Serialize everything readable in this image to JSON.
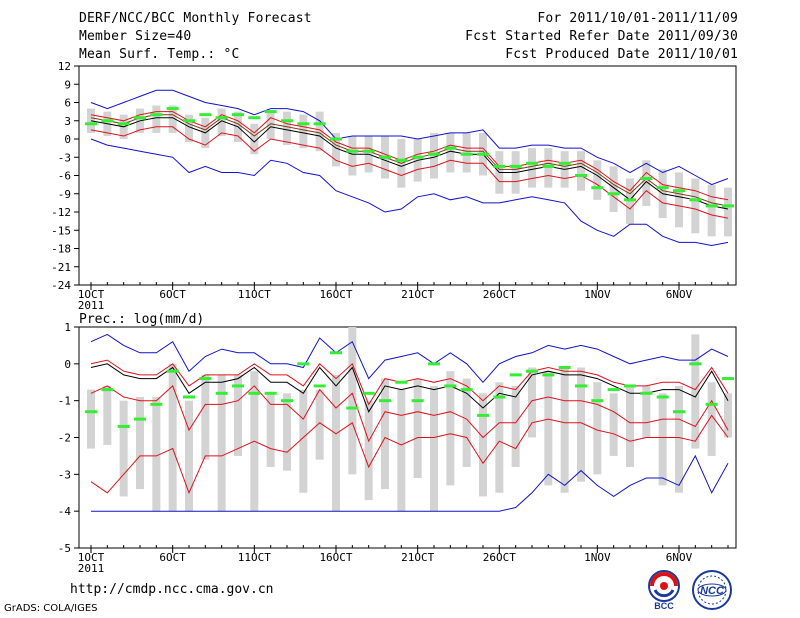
{
  "header": {
    "title": "DERF/NCC/BCC Monthly Forecast",
    "member_size": "Member Size=40",
    "variable": "Mean Surf. Temp.: °C",
    "period": "For 2011/10/01-2011/11/09",
    "fcst_started": "Fcst Started Refer Date 2011/09/30",
    "fcst_produced": "Fcst Produced Date 2011/10/01"
  },
  "footer": {
    "url": "http://cmdp.ncc.cma.gov.cn",
    "grads": "GrADS: COLA/IGES",
    "logo1_text": "BCC",
    "logo2_text": "NCC"
  },
  "colors": {
    "box": "#d3d3d3",
    "mean": "#000000",
    "std_band": "#e0111b",
    "envelope": "#1212cc",
    "observed_marker": "#33ee33",
    "secondary": "#7a3b10"
  },
  "chart_data": [
    {
      "type": "box-ensemble",
      "title": "Mean Surf. Temp.: °C",
      "ylabel": "°C",
      "ylim": [
        -24,
        12
      ],
      "yticks": [
        12,
        9,
        6,
        3,
        0,
        -3,
        -6,
        -9,
        -12,
        -15,
        -18,
        -21,
        -24
      ],
      "xlabels": [
        "1OCT",
        "6OCT",
        "11OCT",
        "16OCT",
        "21OCT",
        "26OCT",
        "1NOV",
        "6NOV"
      ],
      "xlabel_positions": [
        1,
        6,
        11,
        16,
        21,
        26,
        32,
        37
      ],
      "year_label": "2011",
      "days": 40,
      "mean": [
        3.0,
        2.5,
        2.0,
        3.0,
        3.5,
        3.5,
        2.0,
        1.0,
        3.0,
        2.0,
        -0.5,
        2.0,
        1.5,
        1.0,
        0.5,
        -1.5,
        -2.5,
        -2.5,
        -3.5,
        -4.5,
        -3.5,
        -3.0,
        -2.0,
        -2.5,
        -2.5,
        -5.5,
        -5.5,
        -5.0,
        -4.5,
        -5.0,
        -4.5,
        -6.0,
        -8.0,
        -10.0,
        -7.0,
        -9.0,
        -9.5,
        -10.0,
        -11.0,
        -11.5
      ],
      "std_upper": [
        4.0,
        3.5,
        3.0,
        4.0,
        4.5,
        4.5,
        3.0,
        2.0,
        4.0,
        3.0,
        1.0,
        3.5,
        2.5,
        2.0,
        1.5,
        -0.5,
        -1.5,
        -1.5,
        -2.5,
        -3.5,
        -2.5,
        -2.0,
        -1.0,
        -1.5,
        -1.5,
        -4.5,
        -4.5,
        -4.0,
        -3.5,
        -4.0,
        -3.5,
        -5.0,
        -7.0,
        -8.5,
        -5.5,
        -7.5,
        -8.0,
        -8.5,
        -9.5,
        -10.0
      ],
      "std_lower": [
        1.5,
        1.0,
        0.5,
        1.5,
        2.0,
        2.0,
        0.0,
        -1.0,
        1.0,
        0.5,
        -2.0,
        0.0,
        -0.5,
        -1.0,
        -1.5,
        -3.5,
        -4.5,
        -4.0,
        -5.0,
        -6.0,
        -5.0,
        -4.5,
        -3.5,
        -4.0,
        -4.0,
        -7.0,
        -7.0,
        -6.5,
        -6.0,
        -6.5,
        -6.0,
        -7.5,
        -9.5,
        -11.5,
        -8.5,
        -10.5,
        -11.0,
        -11.5,
        -12.5,
        -13.0
      ],
      "env_upper": [
        6.0,
        5.0,
        6.0,
        7.0,
        8.0,
        8.0,
        7.0,
        6.0,
        5.5,
        5.0,
        4.0,
        5.0,
        5.0,
        4.5,
        3.0,
        0.0,
        0.5,
        0.5,
        0.5,
        0.5,
        0.0,
        0.5,
        1.0,
        1.0,
        1.5,
        -1.5,
        -1.5,
        -1.0,
        -1.0,
        -1.5,
        -1.5,
        -3.0,
        -4.0,
        -5.5,
        -4.0,
        -5.5,
        -4.5,
        -6.0,
        -7.5,
        -6.5
      ],
      "env_lower": [
        0.0,
        -1.0,
        -1.5,
        -2.0,
        -2.5,
        -3.0,
        -5.5,
        -4.5,
        -5.5,
        -5.5,
        -6.0,
        -3.5,
        -4.0,
        -5.5,
        -6.0,
        -8.5,
        -9.5,
        -10.5,
        -12.0,
        -11.5,
        -9.5,
        -9.0,
        -10.0,
        -9.5,
        -10.5,
        -10.5,
        -10.0,
        -9.5,
        -10.0,
        -10.5,
        -13.5,
        -15.0,
        -16.0,
        -14.0,
        -14.0,
        -16.0,
        -17.0,
        -17.0,
        -17.5,
        -17.0
      ],
      "secondary_line": [
        3.5,
        3.0,
        2.5,
        3.5,
        4.0,
        4.0,
        2.5,
        1.5,
        3.5,
        2.5,
        0.5,
        2.5,
        2.0,
        1.5,
        1.0,
        -1.0,
        -2.0,
        -2.0,
        -3.0,
        -4.0,
        -3.0,
        -2.5,
        -1.5,
        -2.0,
        -2.0,
        -5.0,
        -5.0,
        -4.5,
        -4.0,
        -4.5,
        -4.0,
        -5.5,
        -7.5,
        -9.0,
        -6.5,
        -8.5,
        -9.0,
        -9.5,
        -10.5,
        -11.0
      ],
      "box_top": [
        5.0,
        4.5,
        4.0,
        5.0,
        5.5,
        5.5,
        4.0,
        3.5,
        5.0,
        4.5,
        2.5,
        4.5,
        4.5,
        4.0,
        4.5,
        1.0,
        0.5,
        0.5,
        0.5,
        0.0,
        0.0,
        1.0,
        1.0,
        1.0,
        1.0,
        -2.0,
        -2.0,
        -1.5,
        -1.5,
        -2.0,
        -2.0,
        -3.5,
        -4.5,
        -6.5,
        -3.5,
        -5.0,
        -5.5,
        -6.5,
        -7.5,
        -8.0
      ],
      "box_bottom": [
        1.0,
        0.5,
        0.0,
        1.0,
        1.0,
        1.0,
        -0.5,
        -1.5,
        0.5,
        -0.5,
        -2.5,
        0.0,
        -1.0,
        -1.5,
        -2.0,
        -4.5,
        -6.0,
        -5.5,
        -6.5,
        -8.0,
        -7.0,
        -6.5,
        -5.5,
        -5.5,
        -6.0,
        -9.0,
        -9.0,
        -8.0,
        -8.0,
        -8.0,
        -8.5,
        -10.0,
        -12.0,
        -14.0,
        -11.0,
        -13.0,
        -14.5,
        -15.5,
        -16.0,
        -16.0
      ],
      "observed": [
        2.5,
        3.0,
        2.5,
        3.5,
        4.0,
        5.0,
        3.0,
        4.0,
        3.5,
        4.0,
        3.5,
        4.5,
        3.0,
        2.5,
        2.5,
        0.0,
        -2.0,
        -2.0,
        -3.0,
        -3.5,
        -3.0,
        -2.5,
        -1.5,
        -2.5,
        -2.5,
        -4.5,
        -4.5,
        -4.0,
        -4.5,
        -4.0,
        -6.0,
        -8.0,
        -9.0,
        -10.0,
        -6.5,
        -8.0,
        -8.5,
        -10.0,
        -11.0,
        -11.0
      ]
    },
    {
      "type": "box-ensemble",
      "title": "Prec.: log(mm/d)",
      "ylabel": "log(mm/d)",
      "ylim": [
        -5,
        1
      ],
      "yticks": [
        1,
        0,
        -1,
        -2,
        -3,
        -4,
        -5
      ],
      "xlabels": [
        "1OCT",
        "6OCT",
        "11OCT",
        "16OCT",
        "21OCT",
        "26OCT",
        "1NOV",
        "6NOV"
      ],
      "xlabel_positions": [
        1,
        6,
        11,
        16,
        21,
        26,
        32,
        37
      ],
      "year_label": "2011",
      "days": 40,
      "mean": [
        -0.1,
        0.0,
        -0.3,
        -0.4,
        -0.4,
        -0.1,
        -0.8,
        -0.5,
        -0.5,
        -0.4,
        -0.1,
        -0.5,
        -0.5,
        -0.8,
        -0.1,
        -0.6,
        -0.1,
        -1.3,
        -0.6,
        -0.7,
        -0.6,
        -0.7,
        -0.6,
        -0.8,
        -1.2,
        -0.8,
        -0.9,
        -0.3,
        -0.2,
        -0.3,
        -0.3,
        -0.4,
        -0.6,
        -0.8,
        -0.8,
        -0.7,
        -0.7,
        -0.9,
        -0.2,
        -1.0
      ],
      "std_upper": [
        0.0,
        0.1,
        -0.2,
        -0.3,
        -0.3,
        0.0,
        -0.6,
        -0.3,
        -0.3,
        -0.3,
        0.0,
        -0.3,
        -0.3,
        -0.6,
        0.0,
        -0.4,
        0.0,
        -1.1,
        -0.4,
        -0.5,
        -0.4,
        -0.5,
        -0.4,
        -0.6,
        -1.0,
        -0.6,
        -0.7,
        -0.2,
        -0.1,
        -0.2,
        -0.2,
        -0.3,
        -0.5,
        -0.6,
        -0.6,
        -0.5,
        -0.5,
        -0.7,
        -0.1,
        -0.8
      ],
      "std_lower": [
        -0.8,
        -0.6,
        -0.9,
        -1.0,
        -1.0,
        -0.6,
        -1.8,
        -1.1,
        -1.1,
        -1.0,
        -0.6,
        -1.1,
        -1.1,
        -1.5,
        -0.7,
        -1.2,
        -0.8,
        -2.1,
        -1.3,
        -1.4,
        -1.3,
        -1.4,
        -1.3,
        -1.5,
        -2.0,
        -1.6,
        -1.6,
        -1.0,
        -0.9,
        -1.0,
        -1.0,
        -1.1,
        -1.3,
        -1.6,
        -1.6,
        -1.5,
        -1.5,
        -1.7,
        -1.0,
        -1.8
      ],
      "low_band": [
        -3.2,
        -3.5,
        -3.0,
        -2.5,
        -2.5,
        -2.3,
        -3.5,
        -2.5,
        -2.5,
        -2.3,
        -2.1,
        -2.3,
        -2.4,
        -2.0,
        -1.6,
        -1.9,
        -1.6,
        -2.8,
        -2.0,
        -2.2,
        -2.0,
        -2.0,
        -1.9,
        -2.0,
        -2.7,
        -2.1,
        -2.3,
        -1.6,
        -1.5,
        -1.6,
        -1.6,
        -1.8,
        -1.9,
        -2.1,
        -2.0,
        -2.0,
        -2.0,
        -2.1,
        -1.4,
        -2.0
      ],
      "env_upper": [
        0.6,
        0.8,
        0.5,
        0.3,
        0.3,
        0.6,
        -0.2,
        0.2,
        0.4,
        0.3,
        0.3,
        0.0,
        0.0,
        -0.1,
        0.7,
        0.3,
        0.6,
        -0.4,
        0.1,
        0.2,
        0.3,
        0.0,
        0.3,
        0.0,
        -0.5,
        0.0,
        0.2,
        0.3,
        0.5,
        0.4,
        0.5,
        0.4,
        0.2,
        0.0,
        0.1,
        0.2,
        0.1,
        0.1,
        0.4,
        0.2
      ],
      "env_lower": [
        -4.0,
        -4.0,
        -4.0,
        -4.0,
        -4.0,
        -4.0,
        -4.0,
        -4.0,
        -4.0,
        -4.0,
        -4.0,
        -4.0,
        -4.0,
        -4.0,
        -4.0,
        -4.0,
        -4.0,
        -4.0,
        -4.0,
        -4.0,
        -4.0,
        -4.0,
        -4.0,
        -4.0,
        -4.0,
        -4.0,
        -3.9,
        -3.5,
        -3.0,
        -3.3,
        -2.9,
        -3.3,
        -3.6,
        -3.3,
        -3.1,
        -3.1,
        -3.3,
        -2.5,
        -3.5,
        -2.7
      ],
      "box_top": [
        -0.7,
        -0.6,
        -1.0,
        -0.9,
        -0.9,
        0.0,
        -1.0,
        -0.3,
        -0.3,
        -0.3,
        -0.2,
        -0.8,
        -0.8,
        -0.7,
        -0.7,
        -0.3,
        1.0,
        -1.0,
        -0.4,
        -0.7,
        -0.4,
        -0.6,
        -0.2,
        -0.4,
        -0.8,
        -0.5,
        -0.6,
        -0.1,
        -0.2,
        -0.1,
        -0.1,
        -0.5,
        -0.8,
        -0.6,
        -0.6,
        -0.8,
        -0.6,
        0.8,
        -0.5,
        -0.8
      ],
      "box_bottom": [
        -2.3,
        -2.2,
        -3.6,
        -3.4,
        -4.0,
        -4.0,
        -4.0,
        -2.6,
        -4.0,
        -2.5,
        -4.0,
        -2.8,
        -2.9,
        -3.5,
        -2.6,
        -4.0,
        -3.0,
        -3.7,
        -3.4,
        -4.0,
        -3.1,
        -4.0,
        -3.3,
        -2.8,
        -3.6,
        -3.5,
        -2.8,
        -2.0,
        -3.3,
        -3.5,
        -3.2,
        -3.0,
        -2.5,
        -2.8,
        -2.0,
        -3.3,
        -3.5,
        -2.3,
        -2.5,
        -2.0
      ],
      "observed": [
        -1.3,
        -0.7,
        -1.7,
        -1.5,
        -1.1,
        -0.2,
        -0.9,
        -0.4,
        -0.8,
        -0.6,
        -0.8,
        -0.8,
        -1.0,
        0.0,
        -0.6,
        0.3,
        -1.2,
        -0.8,
        -1.0,
        -0.5,
        -1.0,
        0.0,
        -0.6,
        -0.7,
        -1.4,
        -0.9,
        -0.3,
        -0.2,
        -0.3,
        -0.1,
        -0.6,
        -1.0,
        -0.7,
        -0.6,
        -0.8,
        -0.9,
        -1.3,
        0.0,
        -1.1,
        -0.4
      ]
    }
  ]
}
